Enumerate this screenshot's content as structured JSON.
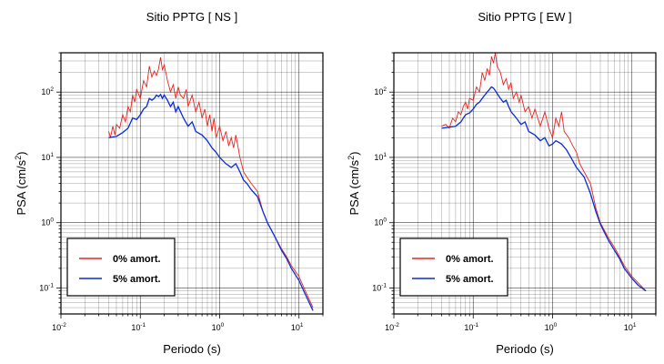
{
  "chart_data": [
    {
      "type": "line",
      "title": "Sitio PPTG [ NS ]",
      "xlabel": "Periodo (s)",
      "ylabel_base": "PSA (cm/s",
      "ylabel_exp": "2",
      "ylabel_close": ")",
      "x_scale": "log",
      "y_scale": "log",
      "xlim": [
        0.01,
        20
      ],
      "ylim": [
        0.04,
        400
      ],
      "grid": true,
      "legend_position": "bottom-left",
      "x_ticks": [
        {
          "base": "10",
          "exp": "-2",
          "value": 0.01
        },
        {
          "base": "10",
          "exp": "-1",
          "value": 0.1
        },
        {
          "base": "10",
          "exp": "0",
          "value": 1
        },
        {
          "base": "10",
          "exp": "1",
          "value": 10
        }
      ],
      "y_ticks": [
        {
          "base": "10",
          "exp": "-1",
          "value": 0.1
        },
        {
          "base": "10",
          "exp": "0",
          "value": 1
        },
        {
          "base": "10",
          "exp": "1",
          "value": 10
        },
        {
          "base": "10",
          "exp": "2",
          "value": 100
        }
      ],
      "series": [
        {
          "name": "0% amort.",
          "color": "#e8231f",
          "points": [
            [
              0.04,
              25
            ],
            [
              0.042,
              20
            ],
            [
              0.045,
              30
            ],
            [
              0.048,
              22
            ],
            [
              0.05,
              32
            ],
            [
              0.055,
              28
            ],
            [
              0.06,
              45
            ],
            [
              0.065,
              35
            ],
            [
              0.07,
              60
            ],
            [
              0.075,
              50
            ],
            [
              0.08,
              90
            ],
            [
              0.085,
              70
            ],
            [
              0.09,
              110
            ],
            [
              0.1,
              80
            ],
            [
              0.11,
              150
            ],
            [
              0.12,
              120
            ],
            [
              0.13,
              250
            ],
            [
              0.14,
              170
            ],
            [
              0.15,
              210
            ],
            [
              0.16,
              180
            ],
            [
              0.17,
              230
            ],
            [
              0.18,
              340
            ],
            [
              0.19,
              220
            ],
            [
              0.2,
              260
            ],
            [
              0.22,
              150
            ],
            [
              0.24,
              100
            ],
            [
              0.26,
              130
            ],
            [
              0.28,
              80
            ],
            [
              0.3,
              120
            ],
            [
              0.32,
              90
            ],
            [
              0.35,
              80
            ],
            [
              0.38,
              110
            ],
            [
              0.4,
              60
            ],
            [
              0.45,
              90
            ],
            [
              0.5,
              50
            ],
            [
              0.55,
              70
            ],
            [
              0.6,
              40
            ],
            [
              0.65,
              55
            ],
            [
              0.7,
              30
            ],
            [
              0.75,
              45
            ],
            [
              0.8,
              25
            ],
            [
              0.85,
              40
            ],
            [
              0.9,
              20
            ],
            [
              1.0,
              30
            ],
            [
              1.1,
              18
            ],
            [
              1.2,
              25
            ],
            [
              1.3,
              15
            ],
            [
              1.4,
              20
            ],
            [
              1.5,
              14
            ],
            [
              1.6,
              22
            ],
            [
              1.8,
              10
            ],
            [
              2.0,
              6
            ],
            [
              2.2,
              5
            ],
            [
              2.5,
              4
            ],
            [
              3.0,
              3
            ],
            [
              3.5,
              1.5
            ],
            [
              4.0,
              1.0
            ],
            [
              5.0,
              0.6
            ],
            [
              6.0,
              0.4
            ],
            [
              7.0,
              0.3
            ],
            [
              8.0,
              0.22
            ],
            [
              10.0,
              0.15
            ],
            [
              12.0,
              0.09
            ],
            [
              15.0,
              0.05
            ]
          ]
        },
        {
          "name": "5% amort.",
          "color": "#0a2bd6",
          "points": [
            [
              0.04,
              20
            ],
            [
              0.05,
              21
            ],
            [
              0.06,
              24
            ],
            [
              0.07,
              28
            ],
            [
              0.08,
              40
            ],
            [
              0.09,
              38
            ],
            [
              0.1,
              45
            ],
            [
              0.11,
              55
            ],
            [
              0.12,
              60
            ],
            [
              0.13,
              80
            ],
            [
              0.14,
              75
            ],
            [
              0.15,
              80
            ],
            [
              0.16,
              90
            ],
            [
              0.17,
              85
            ],
            [
              0.18,
              92
            ],
            [
              0.19,
              80
            ],
            [
              0.2,
              90
            ],
            [
              0.22,
              75
            ],
            [
              0.24,
              60
            ],
            [
              0.26,
              70
            ],
            [
              0.28,
              50
            ],
            [
              0.3,
              60
            ],
            [
              0.35,
              40
            ],
            [
              0.4,
              30
            ],
            [
              0.45,
              35
            ],
            [
              0.5,
              25
            ],
            [
              0.6,
              22
            ],
            [
              0.7,
              18
            ],
            [
              0.8,
              14
            ],
            [
              0.9,
              12
            ],
            [
              1.0,
              10
            ],
            [
              1.2,
              8
            ],
            [
              1.4,
              7
            ],
            [
              1.6,
              8
            ],
            [
              1.8,
              6
            ],
            [
              2.0,
              4.5
            ],
            [
              2.2,
              4
            ],
            [
              2.5,
              3.2
            ],
            [
              3.0,
              2.5
            ],
            [
              3.5,
              1.5
            ],
            [
              4.0,
              1.0
            ],
            [
              5.0,
              0.6
            ],
            [
              6.0,
              0.38
            ],
            [
              7.0,
              0.28
            ],
            [
              8.0,
              0.2
            ],
            [
              10.0,
              0.13
            ],
            [
              12.0,
              0.08
            ],
            [
              15.0,
              0.045
            ]
          ]
        }
      ],
      "legend": [
        {
          "label": "0% amort.",
          "color": "#e8231f"
        },
        {
          "label": "5% amort.",
          "color": "#0a2bd6"
        }
      ]
    },
    {
      "type": "line",
      "title": "Sitio PPTG [ EW ]",
      "xlabel": "Periodo (s)",
      "ylabel_base": "PSA (cm/s",
      "ylabel_exp": "2",
      "ylabel_close": ")",
      "x_scale": "log",
      "y_scale": "log",
      "xlim": [
        0.01,
        20
      ],
      "ylim": [
        0.04,
        400
      ],
      "grid": true,
      "legend_position": "bottom-left",
      "x_ticks": [
        {
          "base": "10",
          "exp": "-2",
          "value": 0.01
        },
        {
          "base": "10",
          "exp": "-1",
          "value": 0.1
        },
        {
          "base": "10",
          "exp": "0",
          "value": 1
        },
        {
          "base": "10",
          "exp": "1",
          "value": 10
        }
      ],
      "y_ticks": [
        {
          "base": "10",
          "exp": "-1",
          "value": 0.1
        },
        {
          "base": "10",
          "exp": "0",
          "value": 1
        },
        {
          "base": "10",
          "exp": "1",
          "value": 10
        },
        {
          "base": "10",
          "exp": "2",
          "value": 100
        }
      ],
      "series": [
        {
          "name": "0% amort.",
          "color": "#e8231f",
          "points": [
            [
              0.04,
              30
            ],
            [
              0.045,
              32
            ],
            [
              0.05,
              28
            ],
            [
              0.055,
              40
            ],
            [
              0.06,
              35
            ],
            [
              0.065,
              50
            ],
            [
              0.07,
              45
            ],
            [
              0.075,
              60
            ],
            [
              0.08,
              70
            ],
            [
              0.085,
              55
            ],
            [
              0.09,
              80
            ],
            [
              0.1,
              75
            ],
            [
              0.11,
              120
            ],
            [
              0.12,
              100
            ],
            [
              0.13,
              200
            ],
            [
              0.14,
              150
            ],
            [
              0.15,
              230
            ],
            [
              0.16,
              180
            ],
            [
              0.17,
              350
            ],
            [
              0.18,
              280
            ],
            [
              0.19,
              400
            ],
            [
              0.2,
              250
            ],
            [
              0.22,
              200
            ],
            [
              0.24,
              130
            ],
            [
              0.26,
              160
            ],
            [
              0.28,
              110
            ],
            [
              0.3,
              140
            ],
            [
              0.32,
              80
            ],
            [
              0.35,
              100
            ],
            [
              0.38,
              70
            ],
            [
              0.4,
              90
            ],
            [
              0.45,
              50
            ],
            [
              0.5,
              60
            ],
            [
              0.55,
              40
            ],
            [
              0.6,
              55
            ],
            [
              0.7,
              30
            ],
            [
              0.8,
              50
            ],
            [
              0.9,
              28
            ],
            [
              1.0,
              20
            ],
            [
              1.1,
              40
            ],
            [
              1.2,
              30
            ],
            [
              1.3,
              50
            ],
            [
              1.4,
              25
            ],
            [
              1.6,
              20
            ],
            [
              1.8,
              15
            ],
            [
              2.0,
              12
            ],
            [
              2.2,
              8
            ],
            [
              2.5,
              6
            ],
            [
              3.0,
              4
            ],
            [
              3.5,
              1.7
            ],
            [
              4.0,
              1.0
            ],
            [
              5.0,
              0.6
            ],
            [
              6.0,
              0.42
            ],
            [
              7.0,
              0.3
            ],
            [
              8.0,
              0.22
            ],
            [
              10.0,
              0.15
            ],
            [
              12.0,
              0.12
            ],
            [
              15.0,
              0.09
            ]
          ]
        },
        {
          "name": "5% amort.",
          "color": "#0a2bd6",
          "points": [
            [
              0.04,
              28
            ],
            [
              0.05,
              29
            ],
            [
              0.06,
              30
            ],
            [
              0.07,
              35
            ],
            [
              0.08,
              45
            ],
            [
              0.09,
              48
            ],
            [
              0.1,
              55
            ],
            [
              0.11,
              65
            ],
            [
              0.12,
              70
            ],
            [
              0.13,
              80
            ],
            [
              0.14,
              90
            ],
            [
              0.15,
              100
            ],
            [
              0.16,
              110
            ],
            [
              0.17,
              120
            ],
            [
              0.18,
              115
            ],
            [
              0.19,
              105
            ],
            [
              0.2,
              95
            ],
            [
              0.22,
              80
            ],
            [
              0.24,
              70
            ],
            [
              0.26,
              75
            ],
            [
              0.28,
              60
            ],
            [
              0.3,
              50
            ],
            [
              0.35,
              40
            ],
            [
              0.4,
              32
            ],
            [
              0.45,
              35
            ],
            [
              0.5,
              25
            ],
            [
              0.6,
              22
            ],
            [
              0.7,
              18
            ],
            [
              0.8,
              20
            ],
            [
              0.9,
              15
            ],
            [
              1.0,
              16
            ],
            [
              1.1,
              18
            ],
            [
              1.2,
              17
            ],
            [
              1.3,
              16
            ],
            [
              1.5,
              13
            ],
            [
              1.7,
              10
            ],
            [
              2.0,
              7
            ],
            [
              2.5,
              5
            ],
            [
              3.0,
              2.8
            ],
            [
              3.5,
              1.5
            ],
            [
              4.0,
              0.95
            ],
            [
              5.0,
              0.55
            ],
            [
              6.0,
              0.38
            ],
            [
              7.0,
              0.28
            ],
            [
              8.0,
              0.2
            ],
            [
              10.0,
              0.14
            ],
            [
              12.0,
              0.11
            ],
            [
              15.0,
              0.09
            ]
          ]
        }
      ],
      "legend": [
        {
          "label": "0% amort.",
          "color": "#e8231f"
        },
        {
          "label": "5% amort.",
          "color": "#0a2bd6"
        }
      ]
    }
  ]
}
